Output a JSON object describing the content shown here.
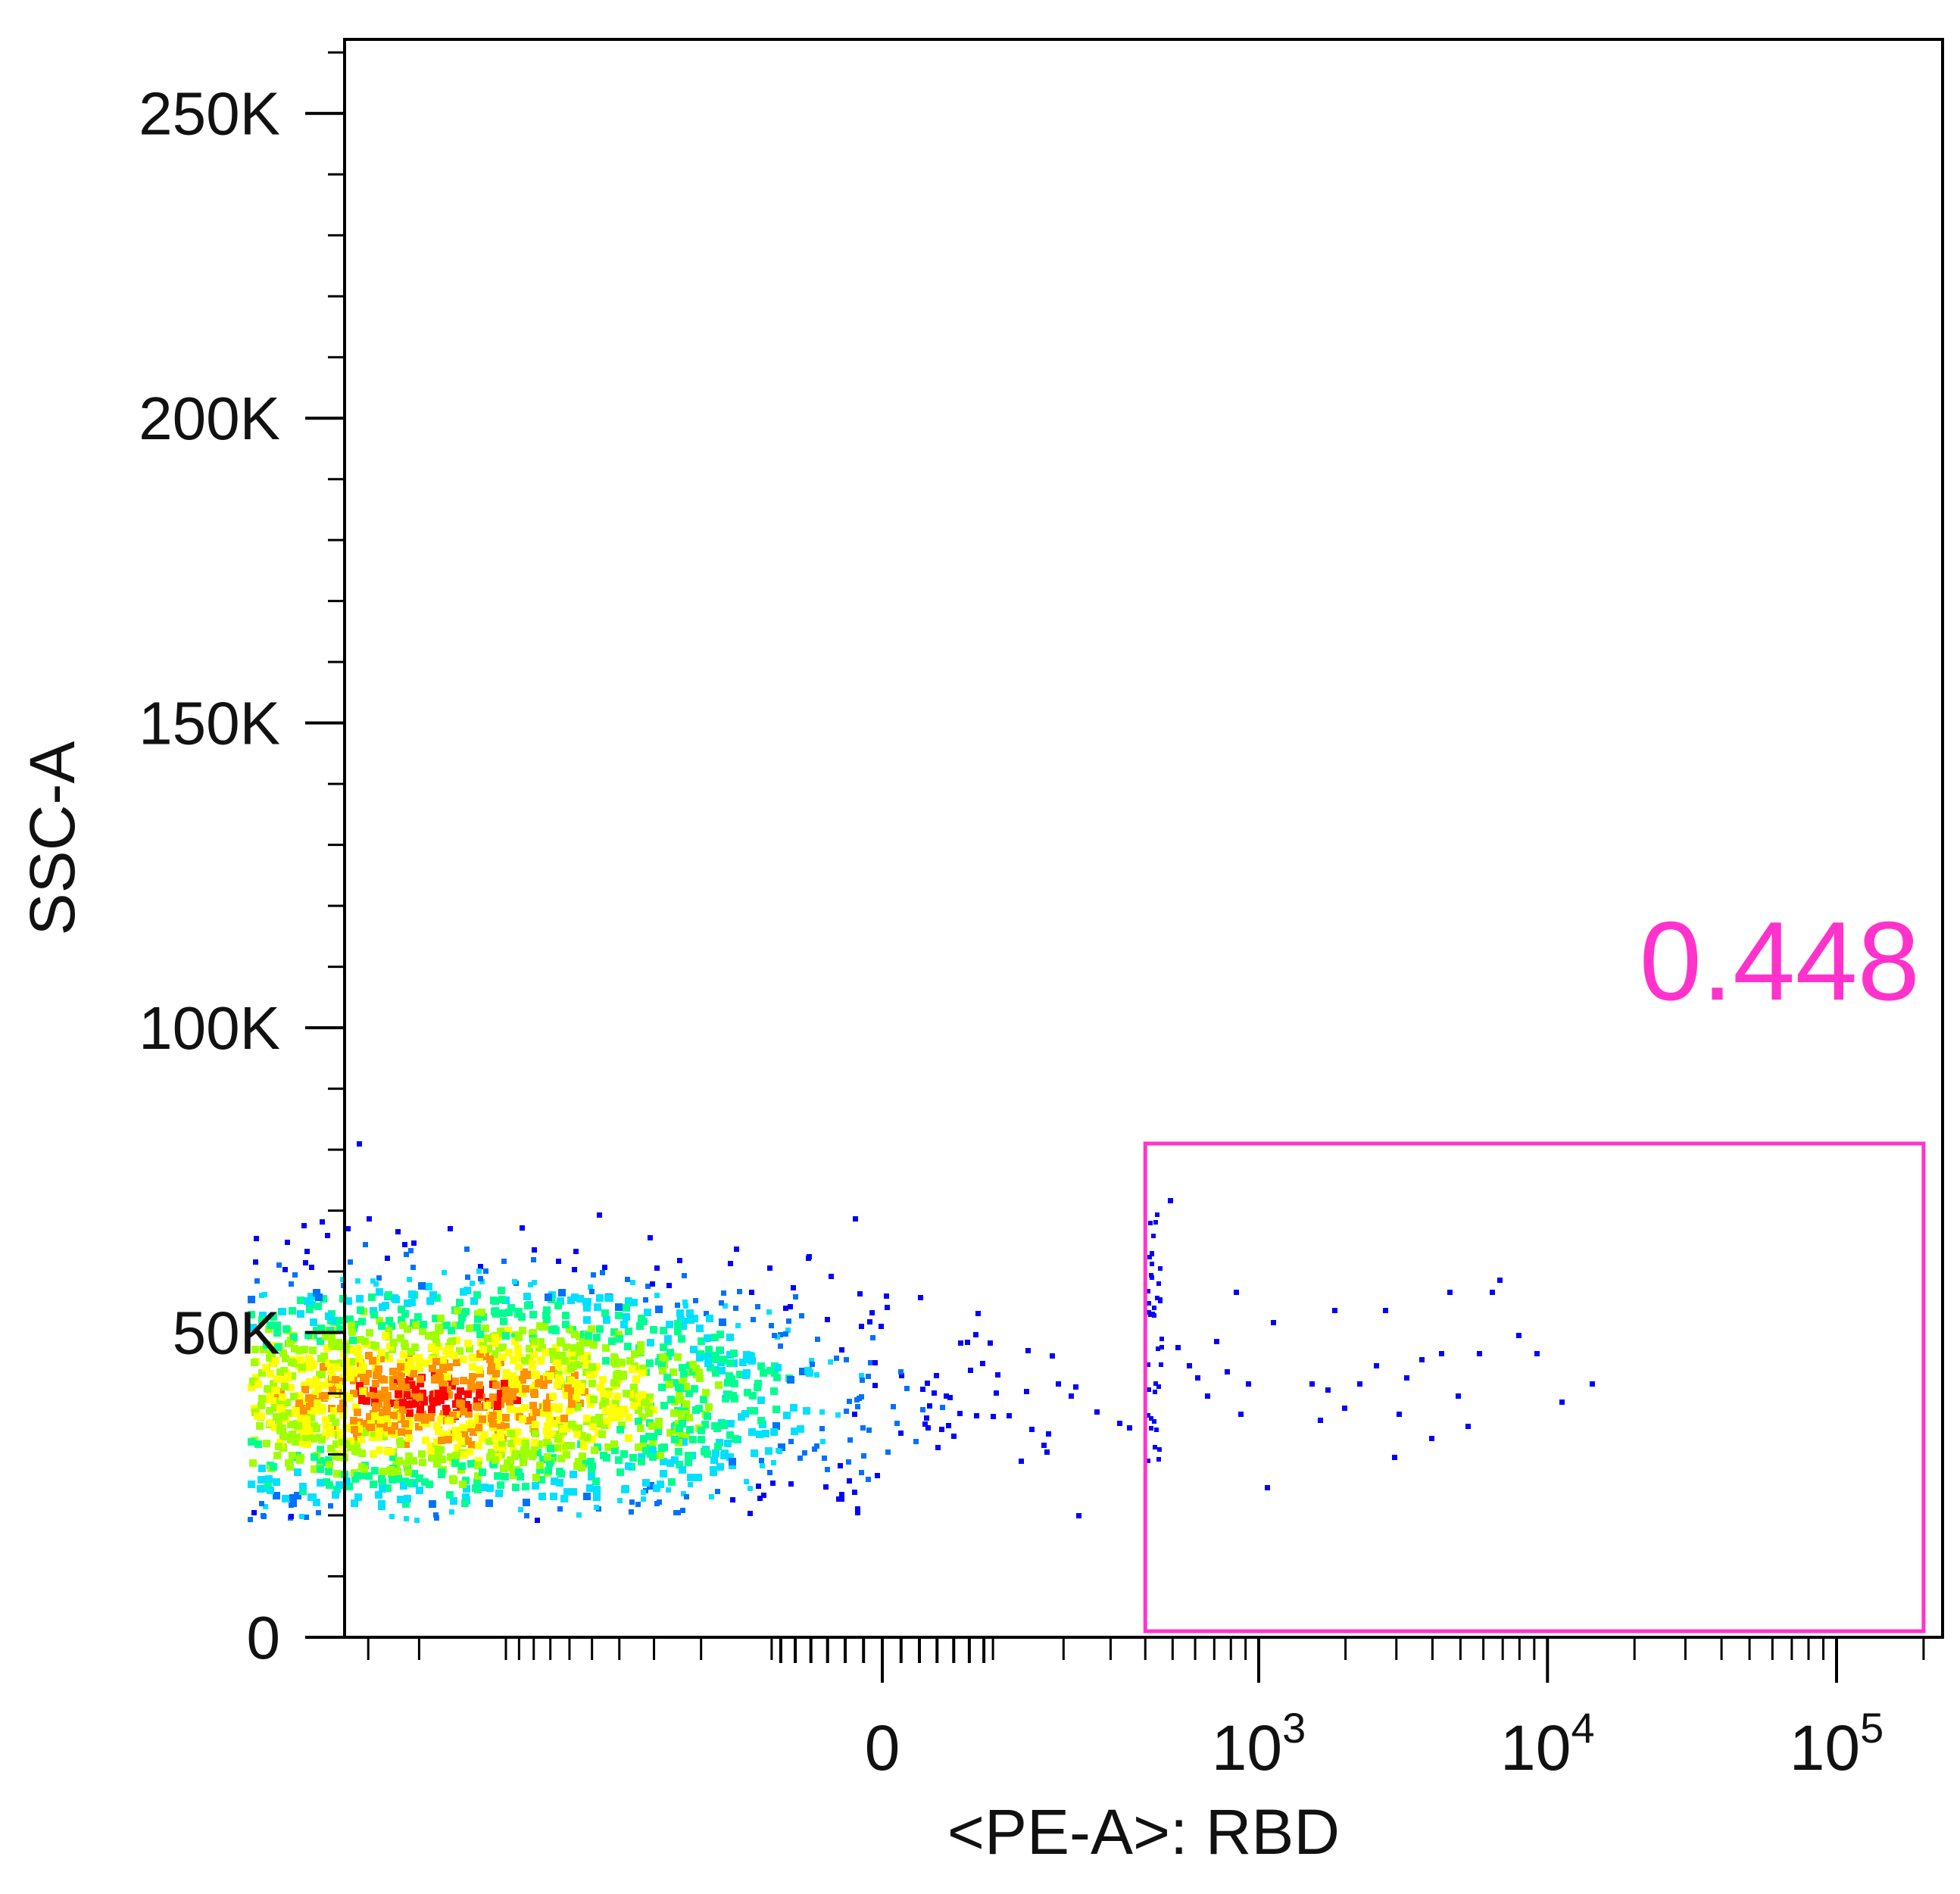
{
  "chart_data": {
    "type": "scatter",
    "subtype": "flow-cytometry-pseudocolor-density",
    "xlabel": "<PE-A>: RBD",
    "ylabel": "SSC-A",
    "x_scale": "biexponential",
    "x_tick_labels": [
      {
        "base": "0",
        "exp": "",
        "value": 0
      },
      {
        "base": "10",
        "exp": "3",
        "value": 1000
      },
      {
        "base": "10",
        "exp": "4",
        "value": 10000
      },
      {
        "base": "10",
        "exp": "5",
        "value": 100000
      }
    ],
    "x_minor_ticks": [
      -10000,
      -9000,
      -8000,
      -7000,
      -6000,
      -5000,
      -4000,
      -3000,
      -2000,
      -1000,
      -900,
      -800,
      -700,
      -600,
      -500,
      -400,
      -300,
      -200,
      -100,
      100,
      200,
      300,
      400,
      500,
      600,
      700,
      800,
      900,
      2000,
      3000,
      4000,
      5000,
      6000,
      7000,
      8000,
      9000,
      20000,
      30000,
      40000,
      50000,
      60000,
      70000,
      80000,
      90000,
      200000
    ],
    "y_scale": "linear",
    "ylim": [
      0,
      262144
    ],
    "y_tick_labels": [
      {
        "label": "0",
        "value": 0
      },
      {
        "label": "50K",
        "value": 50000
      },
      {
        "label": "100K",
        "value": 100000
      },
      {
        "label": "150K",
        "value": 150000
      },
      {
        "label": "200K",
        "value": 200000
      },
      {
        "label": "250K",
        "value": 250000
      }
    ],
    "y_minor_step": 10000,
    "main_population": {
      "x_center": -1800,
      "x_min": -7000,
      "x_max": 450,
      "y_center": 40000,
      "y_min": 22000,
      "y_max": 80000
    },
    "positive_events": [
      {
        "x": 480,
        "y": 72000
      },
      {
        "x": 510,
        "y": 48000
      },
      {
        "x": 560,
        "y": 45000
      },
      {
        "x": 600,
        "y": 43000
      },
      {
        "x": 650,
        "y": 40000
      },
      {
        "x": 700,
        "y": 49000
      },
      {
        "x": 760,
        "y": 44000
      },
      {
        "x": 820,
        "y": 57000
      },
      {
        "x": 850,
        "y": 37000
      },
      {
        "x": 900,
        "y": 42000
      },
      {
        "x": 1050,
        "y": 25000
      },
      {
        "x": 1100,
        "y": 52000
      },
      {
        "x": 1500,
        "y": 42000
      },
      {
        "x": 1600,
        "y": 36000
      },
      {
        "x": 1700,
        "y": 41000
      },
      {
        "x": 1800,
        "y": 54000
      },
      {
        "x": 1950,
        "y": 38000
      },
      {
        "x": 2200,
        "y": 42000
      },
      {
        "x": 2500,
        "y": 45000
      },
      {
        "x": 2700,
        "y": 54000
      },
      {
        "x": 2900,
        "y": 30000
      },
      {
        "x": 3000,
        "y": 37000
      },
      {
        "x": 3200,
        "y": 43000
      },
      {
        "x": 3600,
        "y": 46000
      },
      {
        "x": 3900,
        "y": 33000
      },
      {
        "x": 4200,
        "y": 47000
      },
      {
        "x": 4500,
        "y": 57000
      },
      {
        "x": 4800,
        "y": 40000
      },
      {
        "x": 5200,
        "y": 35000
      },
      {
        "x": 5700,
        "y": 47000
      },
      {
        "x": 6300,
        "y": 57000
      },
      {
        "x": 6700,
        "y": 59000
      },
      {
        "x": 7800,
        "y": 50000
      },
      {
        "x": 9000,
        "y": 47000
      },
      {
        "x": 11000,
        "y": 39000
      },
      {
        "x": 14000,
        "y": 42000
      }
    ],
    "density_colormap": [
      "#0000ff",
      "#0070ff",
      "#00e0ff",
      "#00ff90",
      "#a0ff00",
      "#ffff00",
      "#ff9000",
      "#ff0000"
    ],
    "gate": {
      "x_min": 400,
      "x_max": 200000,
      "y_min": 0,
      "y_max": 81000,
      "frequency": "0.448",
      "color": "#ff33cc"
    }
  }
}
